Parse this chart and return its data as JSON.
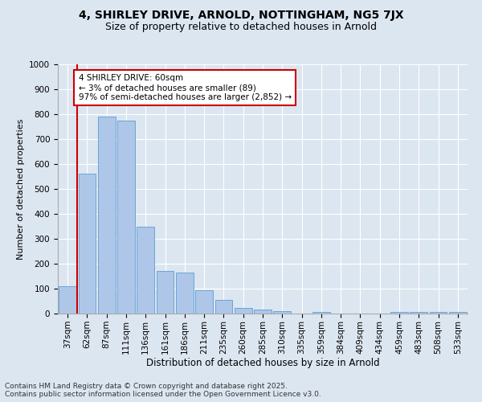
{
  "title1": "4, SHIRLEY DRIVE, ARNOLD, NOTTINGHAM, NG5 7JX",
  "title2": "Size of property relative to detached houses in Arnold",
  "xlabel": "Distribution of detached houses by size in Arnold",
  "ylabel": "Number of detached properties",
  "categories": [
    "37sqm",
    "62sqm",
    "87sqm",
    "111sqm",
    "136sqm",
    "161sqm",
    "186sqm",
    "211sqm",
    "235sqm",
    "260sqm",
    "285sqm",
    "310sqm",
    "335sqm",
    "359sqm",
    "384sqm",
    "409sqm",
    "434sqm",
    "459sqm",
    "483sqm",
    "508sqm",
    "533sqm"
  ],
  "values": [
    110,
    560,
    790,
    775,
    350,
    170,
    165,
    95,
    55,
    22,
    15,
    10,
    0,
    8,
    0,
    0,
    0,
    5,
    5,
    5,
    5
  ],
  "bar_color": "#aec6e8",
  "bar_edge_color": "#5a9fd4",
  "highlight_line_color": "#cc0000",
  "annotation_text": "4 SHIRLEY DRIVE: 60sqm\n← 3% of detached houses are smaller (89)\n97% of semi-detached houses are larger (2,852) →",
  "annotation_box_color": "#ffffff",
  "annotation_box_edge_color": "#cc0000",
  "ylim": [
    0,
    1000
  ],
  "yticks": [
    0,
    100,
    200,
    300,
    400,
    500,
    600,
    700,
    800,
    900,
    1000
  ],
  "background_color": "#dce6f1",
  "plot_bg_color": "#dce6f1",
  "footer_text": "Contains HM Land Registry data © Crown copyright and database right 2025.\nContains public sector information licensed under the Open Government Licence v3.0.",
  "title1_fontsize": 10,
  "title2_fontsize": 9,
  "xlabel_fontsize": 8.5,
  "ylabel_fontsize": 8,
  "tick_fontsize": 7.5,
  "annotation_fontsize": 7.5,
  "footer_fontsize": 6.5
}
